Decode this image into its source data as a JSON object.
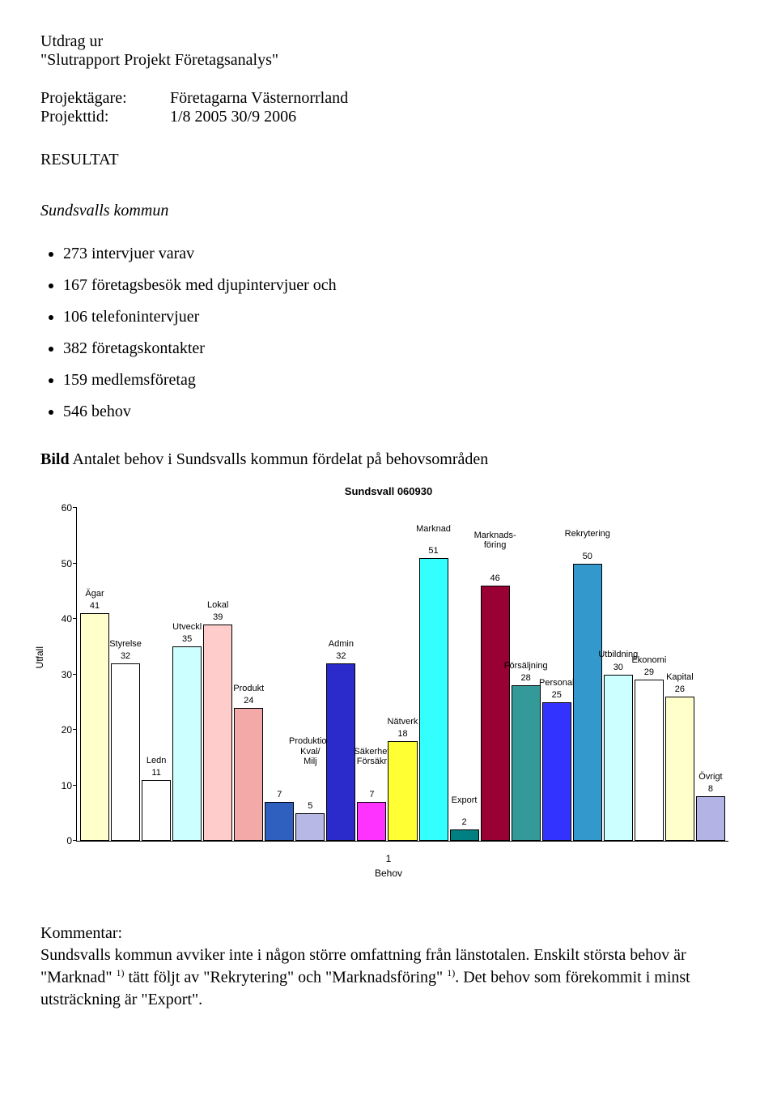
{
  "header": {
    "line1": "Utdrag ur",
    "line2": "\"Slutrapport Projekt Företagsanalys\"",
    "owner_label": "Projektägare:",
    "owner_value": "Företagarna Västernorrland",
    "period_label": "Projekttid:",
    "period_value": "1/8 2005 30/9 2006",
    "resultat": "RESULTAT",
    "subsection": "Sundsvalls kommun"
  },
  "bullets": [
    "273 intervjuer varav",
    "167 företagsbesök med djupintervjuer och",
    "106 telefonintervjuer",
    "382 företagskontakter",
    "159 medlemsföretag",
    "546 behov"
  ],
  "bild_line": {
    "prefix": "Bild",
    "rest": "  Antalet behov i Sundsvalls kommun fördelat på behovsområden"
  },
  "chart": {
    "title": "Sundsvall 060930",
    "ylabel": "Utfall",
    "xlabel": "Behov",
    "x_tick": "1",
    "ylim": [
      0,
      60
    ],
    "ytick_step": 10,
    "background": "#ffffff",
    "series": [
      {
        "label": "Ägar",
        "value": 41,
        "color": "#ffffcc",
        "label_offset": 18
      },
      {
        "label": "Styrelse",
        "value": 32,
        "color": "#ffffff",
        "label_offset": 18
      },
      {
        "label": "Ledn",
        "value": 11,
        "color": "#ffffff",
        "label_offset": 18
      },
      {
        "label": "Utveckl",
        "value": 35,
        "color": "#ccffff",
        "label_offset": 18
      },
      {
        "label": "Lokal",
        "value": 39,
        "color": "#ffcccc",
        "label_offset": 18
      },
      {
        "label": "Produkt",
        "value": 24,
        "color": "#f4a9a9",
        "label_offset": 18
      },
      {
        "label": "",
        "value": 7,
        "color": "#2f5fbf",
        "label_offset": 0
      },
      {
        "label": "Produktion\nKval/\nMilj",
        "value": 5,
        "color": "#b8b8e6",
        "label_offset": 58
      },
      {
        "label": "Admin",
        "value": 32,
        "color": "#2b2bcc",
        "label_offset": 18
      },
      {
        "label": "Säkerhet\nFörsäkr",
        "value": 7,
        "color": "#ff33ff",
        "label_offset": 44
      },
      {
        "label": "Nätverk",
        "value": 18,
        "color": "#ffff33",
        "label_offset": 18
      },
      {
        "label": "Marknad",
        "value": 51,
        "color": "#33ffff",
        "label_offset": 30
      },
      {
        "label": "Export",
        "value": 2,
        "color": "#008080",
        "label_offset": 30
      },
      {
        "label": "Marknads-\nföring",
        "value": 46,
        "color": "#990033",
        "label_offset": 44
      },
      {
        "label": "Försäljning",
        "value": 28,
        "color": "#339999",
        "label_offset": 18
      },
      {
        "label": "Personal",
        "value": 25,
        "color": "#3333ff",
        "label_offset": 18
      },
      {
        "label": "Rekrytering",
        "value": 50,
        "color": "#3399cc",
        "label_offset": 30
      },
      {
        "label": "Utbildning",
        "value": 30,
        "color": "#ccffff",
        "label_offset": 18
      },
      {
        "label": "Ekonomi",
        "value": 29,
        "color": "#ffffff",
        "label_offset": 18
      },
      {
        "label": "Kapital",
        "value": 26,
        "color": "#ffffcc",
        "label_offset": 18
      },
      {
        "label": "Övrigt",
        "value": 8,
        "color": "#b3b3e6",
        "label_offset": 18
      }
    ]
  },
  "kommentar": {
    "heading": "Kommentar:",
    "body_html": "Sundsvalls kommun avviker inte i någon större omfattning från länstotalen. Enskilt största behov är \"Marknad\" <sup>1)</sup> tätt följt av \"Rekrytering\" och \"Marknadsföring\" <sup>1)</sup>. Det behov som förekommit i minst utsträckning är \"Export\"."
  }
}
